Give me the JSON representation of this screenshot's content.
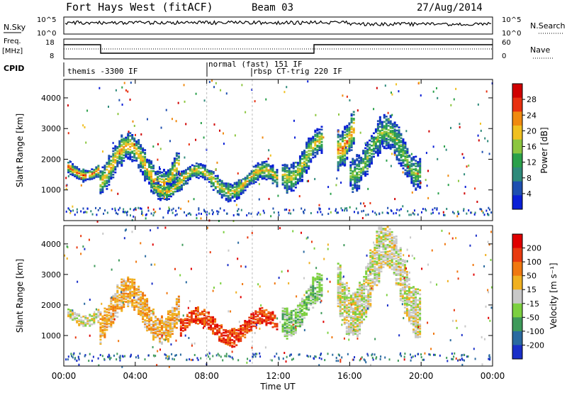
{
  "header": {
    "title": "Fort Hays West (fitACF)",
    "beam": "Beam 03",
    "date": "27/Aug/2014"
  },
  "noise_panel": {
    "left_label": "N.Sky",
    "right_label": "N.Search",
    "tick_top": "10^5",
    "tick_bottom": "10^0"
  },
  "freq_panel": {
    "left_label_1": "Freq.",
    "left_label_2": "[MHz]",
    "right_label": "Nave",
    "left_ticks": [
      "18",
      "8"
    ],
    "right_ticks": [
      "60",
      "0"
    ]
  },
  "cpid_panel": {
    "label": "CPID",
    "modes": [
      {
        "text": "themis -3300 IF",
        "start_hour": 0.1
      },
      {
        "text": "normal (fast) 151 IF",
        "start_hour": 8.0
      },
      {
        "text": "rbsp CT-trig 220 IF",
        "start_hour": 10.55
      }
    ]
  },
  "x_axis": {
    "label": "Time UT",
    "ticks": [
      "00:00",
      "04:00",
      "08:00",
      "12:00",
      "16:00",
      "20:00",
      "00:00"
    ]
  },
  "chart_data": [
    {
      "type": "heatmap",
      "name": "power",
      "ylabel": "Slant Range [km]",
      "yticks": [
        "4000",
        "3000",
        "2000",
        "1000"
      ],
      "ylim": [
        0,
        4600
      ],
      "xlim": [
        0,
        24
      ],
      "colorbar_label": "Power [dB]",
      "colorbar_ticks": [
        "28",
        "24",
        "20",
        "16",
        "12",
        "8",
        "4"
      ],
      "colors": [
        "#0a1fd6",
        "#1e4fb0",
        "#2e8a7a",
        "#2aa04a",
        "#8cc63f",
        "#f0c020",
        "#f08a10",
        "#e83010",
        "#d00000"
      ],
      "echo_regions": [
        {
          "t0": 0.2,
          "t1": 2.0,
          "r0": 1350,
          "r1": 2100,
          "peak": 0.85
        },
        {
          "t0": 2.0,
          "t1": 6.5,
          "r0": 900,
          "r1": 2700,
          "peak": 0.7
        },
        {
          "t0": 5.0,
          "t1": 12.0,
          "r0": 750,
          "r1": 1800,
          "peak": 0.65
        },
        {
          "t0": 12.2,
          "t1": 14.5,
          "r0": 1100,
          "r1": 2900,
          "peak": 0.6
        },
        {
          "t0": 15.3,
          "t1": 16.3,
          "r0": 1900,
          "r1": 4400,
          "peak": 0.8
        },
        {
          "t0": 16.0,
          "t1": 20.0,
          "r0": 1200,
          "r1": 3200,
          "peak": 0.5
        }
      ]
    },
    {
      "type": "heatmap",
      "name": "velocity",
      "ylabel": "Slant Range [km]",
      "yticks": [
        "4000",
        "3000",
        "2000",
        "1000"
      ],
      "ylim": [
        0,
        4600
      ],
      "xlim": [
        0,
        24
      ],
      "colorbar_label": "Velocity [m s⁻¹]",
      "colorbar_ticks": [
        "200",
        "100",
        "50",
        "15",
        "-15",
        "-50",
        "-100",
        "-200"
      ],
      "colors": [
        "#1a2fc8",
        "#2a6aa0",
        "#3e9a5a",
        "#7cd040",
        "#c8c8c8",
        "#f0b020",
        "#f07810",
        "#e83a10",
        "#e00000"
      ],
      "echo_regions": [
        {
          "t0": 0.2,
          "t1": 2.0,
          "r0": 1350,
          "r1": 2100,
          "class": "gray"
        },
        {
          "t0": 2.0,
          "t1": 6.5,
          "r0": 900,
          "r1": 2700,
          "class": "orange"
        },
        {
          "t0": 6.5,
          "t1": 12.0,
          "r0": 750,
          "r1": 1800,
          "class": "red"
        },
        {
          "t0": 12.2,
          "t1": 14.5,
          "r0": 1100,
          "r1": 2900,
          "class": "green"
        },
        {
          "t0": 15.3,
          "t1": 20.0,
          "r0": 1200,
          "r1": 4400,
          "class": "gray"
        }
      ]
    }
  ]
}
